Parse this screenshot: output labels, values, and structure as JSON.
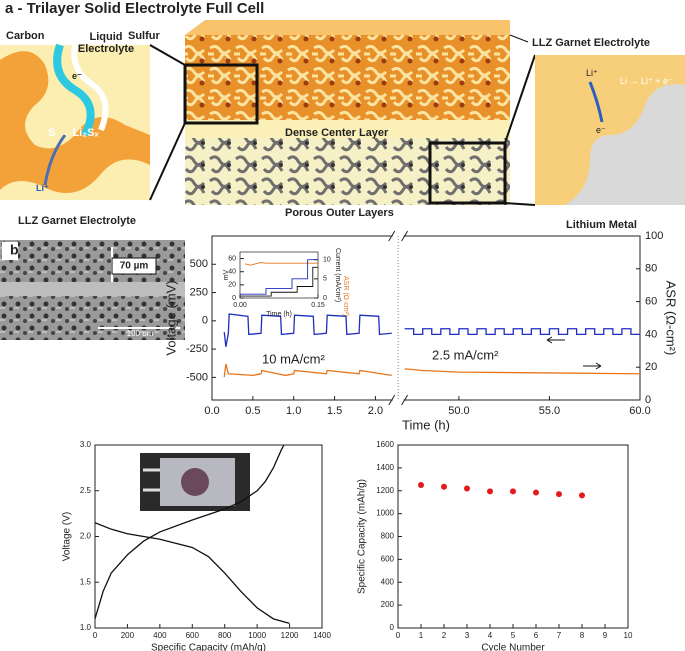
{
  "panel_a": {
    "title": "a - Trilayer Solid Electrolyte Full Cell",
    "carbon": "Carbon",
    "liquid_electrolyte": "Liquid Electrolyte",
    "sulfur": "Sulfur",
    "electron_left": "e⁻",
    "reaction_left": "S → Li₂Sₓ",
    "li_ion_left": "Li⁺",
    "llz_left": "LLZ Garnet Electrolyte",
    "llz_right": "LLZ Garnet Electrolyte",
    "dense_layer": "Dense Center Layer",
    "porous_layers": "Porous Outer Layers",
    "li_ion_right": "Li⁺",
    "reaction_right": "Li → Li⁺ + e⁻",
    "electron_right": "e⁻",
    "lithium_metal": "Lithium Metal"
  },
  "panel_b": {
    "label": "b",
    "thickness": "70 µm",
    "scale_bar": "100 um"
  },
  "chart_data": [
    {
      "type": "line",
      "xlim": [
        0,
        60
      ],
      "xsegments": [
        [
          0,
          2.2
        ],
        [
          47,
          60
        ]
      ],
      "xticks": [
        {
          "value": 0,
          "label": "0.0"
        },
        {
          "value": 0.5,
          "label": "0.5"
        },
        {
          "value": 1,
          "label": "1.0"
        },
        {
          "value": 1.5,
          "label": "1.5"
        },
        {
          "value": 2,
          "label": "2.0"
        },
        {
          "value": 50,
          "label": "50.0"
        },
        {
          "value": 55,
          "label": "55.0"
        },
        {
          "value": 60,
          "label": "60.0"
        }
      ],
      "ylim": [
        -700,
        750
      ],
      "yticks": [
        -500,
        -250,
        0,
        250,
        500
      ],
      "y2lim": [
        0,
        100
      ],
      "y2ticks": [
        0,
        20,
        40,
        60,
        80,
        100
      ],
      "xlabel": "Time (h)",
      "ylabel": "Voltage (mV)",
      "y2label": "ASR (Ω-cm²)",
      "annotations": [
        "10 mA/cm²",
        "2.5 mA/cm²"
      ],
      "series": [
        {
          "color": "#1f2fbf",
          "x": [
            0.15,
            0.17,
            0.2,
            0.21,
            0.44,
            0.45,
            0.6,
            0.61,
            0.84,
            0.85,
            1.0,
            1.01,
            1.24,
            1.25,
            1.4,
            1.41,
            1.64,
            1.65,
            1.8,
            1.81,
            2.04,
            2.05,
            2.2,
            2.2,
            47,
            47.5,
            47.5,
            48,
            48,
            48.5,
            48.5,
            49,
            49,
            49.5,
            49.5,
            50,
            50,
            50.5,
            50.5,
            51,
            51,
            51.5,
            51.5,
            52,
            52,
            52.5,
            52.5,
            53,
            53,
            53.5,
            53.5,
            54,
            54,
            54.5,
            54.5,
            55,
            55,
            55.5,
            55.5,
            56,
            56,
            56.5,
            56.5,
            57,
            57,
            57.5,
            57.5,
            58,
            58,
            58.5,
            58.5,
            59,
            59,
            59.5,
            59.5,
            60
          ],
          "values": [
            -100,
            -230,
            -110,
            60,
            40,
            -120,
            -110,
            50,
            40,
            -120,
            -110,
            50,
            40,
            -120,
            -110,
            50,
            40,
            -120,
            -110,
            50,
            40,
            -120,
            -110,
            null,
            -70,
            -70,
            -120,
            -120,
            -70,
            -70,
            -120,
            -120,
            -70,
            -70,
            -120,
            -120,
            -70,
            -70,
            -120,
            -120,
            -70,
            -70,
            -120,
            -120,
            -70,
            -70,
            -120,
            -120,
            -70,
            -70,
            -120,
            -120,
            -70,
            -70,
            -120,
            -120,
            -70,
            -70,
            -120,
            -120,
            -70,
            -70,
            -120,
            -120,
            -70,
            -70,
            -120,
            -120,
            -70,
            -70,
            -120,
            -120,
            -70,
            -70,
            -120,
            -120
          ]
        },
        {
          "color": "#e8751a",
          "axis": "y2",
          "x": [
            0.15,
            0.17,
            0.2,
            0.5,
            0.6,
            0.61,
            0.9,
            1.0,
            1.01,
            1.4,
            1.41,
            1.8,
            1.81,
            2.2,
            2.2,
            47,
            48,
            50,
            55,
            60
          ],
          "values": [
            14,
            22,
            16,
            15,
            16,
            18,
            15,
            16,
            18,
            16,
            18,
            16,
            18,
            15,
            null,
            19,
            18,
            17,
            16.5,
            16
          ]
        }
      ]
    },
    {
      "type": "line",
      "xlim": [
        0,
        0.15
      ],
      "xticks": [
        {
          "value": 0,
          "label": "0.00"
        },
        {
          "value": 0.15,
          "label": "0.15"
        }
      ],
      "ylim": [
        0,
        70
      ],
      "yticks": [
        0,
        20,
        40,
        60
      ],
      "y2lim": [
        0,
        12
      ],
      "y2ticks": [
        0,
        5,
        10
      ],
      "xlabel": "Time (h)",
      "ylabel": "mV",
      "y2label": "Current (mA/cm²)",
      "annotations": [
        "ASR (Ω·cm²)"
      ],
      "series": [
        {
          "color": "#e8751a",
          "x": [
            0.01,
            0.02,
            0.03,
            0.04,
            0.05,
            0.15
          ],
          "values": [
            52,
            50,
            52,
            54,
            53,
            53
          ]
        },
        {
          "color": "#1f2fbf",
          "axis": "y2",
          "x": [
            0,
            0.05,
            0.05,
            0.1,
            0.1,
            0.13,
            0.13,
            0.15
          ],
          "values": [
            1,
            1,
            2.5,
            2.5,
            5,
            5,
            10,
            10
          ]
        },
        {
          "color": "#111111",
          "axis": "y2",
          "x": [
            0,
            0.06,
            0.06,
            0.11,
            0.11,
            0.14,
            0.14,
            0.15
          ],
          "values": [
            0.5,
            0.5,
            1.5,
            1.5,
            3,
            3,
            8,
            8
          ]
        }
      ]
    },
    {
      "type": "line",
      "xlim": [
        0,
        1400
      ],
      "xticks": [
        0,
        200,
        400,
        600,
        800,
        1000,
        1200,
        1400
      ],
      "ylim": [
        1,
        3
      ],
      "yticks": [
        {
          "value": 1,
          "label": "1.0"
        },
        1.5,
        {
          "value": 2,
          "label": "2.0"
        },
        2.5,
        {
          "value": 3,
          "label": "3.0"
        }
      ],
      "xlabel": "Specific Capacity (mAh/g)",
      "ylabel": "Voltage (V)",
      "series": [
        {
          "color": "#111111",
          "x": [
            0,
            100,
            200,
            400,
            600,
            700,
            800,
            900,
            1000,
            1100,
            1200
          ],
          "values": [
            2.15,
            2.08,
            2.03,
            1.97,
            1.88,
            1.78,
            1.6,
            1.4,
            1.22,
            1.1,
            1.05
          ]
        },
        {
          "color": "#111111",
          "x": [
            0,
            50,
            100,
            200,
            300,
            400,
            600,
            800,
            900,
            1000,
            1050,
            1100,
            1150,
            1165
          ],
          "values": [
            1.1,
            1.4,
            1.6,
            1.8,
            1.95,
            2.05,
            2.18,
            2.3,
            2.38,
            2.5,
            2.6,
            2.75,
            2.95,
            3.0
          ]
        }
      ]
    },
    {
      "type": "scatter",
      "xlim": [
        0,
        10
      ],
      "xticks": [
        0,
        1,
        2,
        3,
        4,
        5,
        6,
        7,
        8,
        9,
        10
      ],
      "ylim": [
        0,
        1600
      ],
      "yticks": [
        0,
        200,
        400,
        600,
        800,
        1000,
        1200,
        1400,
        1600
      ],
      "xlabel": "Cycle Number",
      "ylabel": "Specific Capacity (mAh/g)",
      "series": [
        {
          "color": "#e41a1c",
          "x": [
            1,
            2,
            3,
            4,
            5,
            6,
            7,
            8
          ],
          "values": [
            1250,
            1235,
            1220,
            1195,
            1195,
            1185,
            1170,
            1160
          ]
        }
      ]
    }
  ]
}
